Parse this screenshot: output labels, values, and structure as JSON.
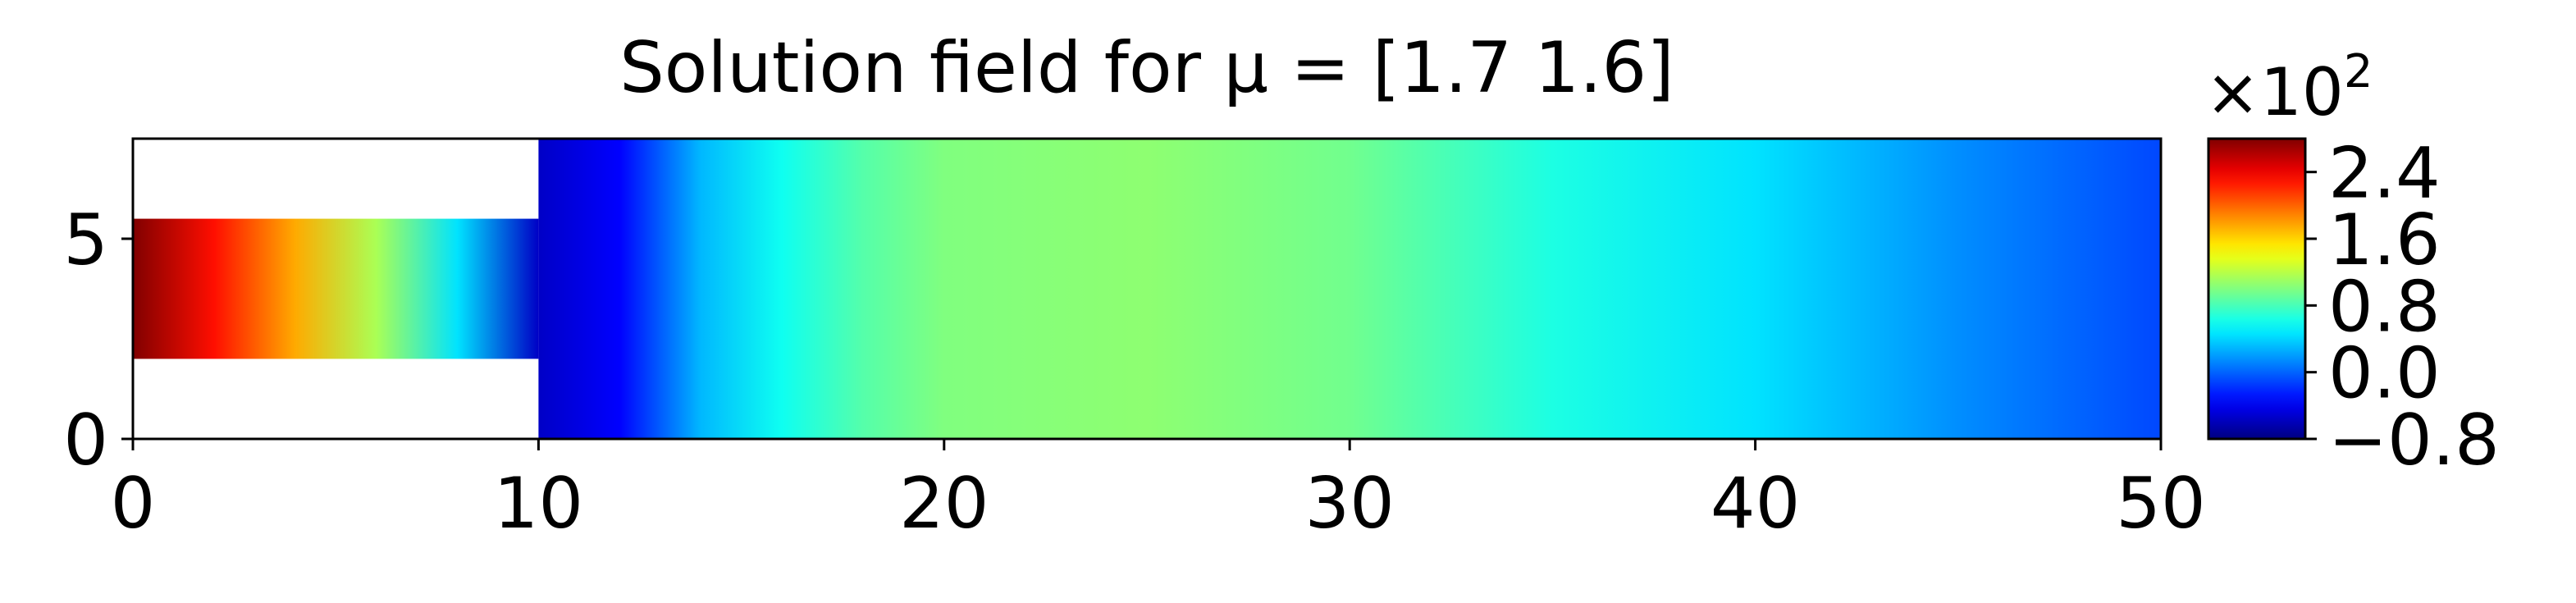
{
  "chart_data": {
    "type": "heatmap",
    "title": "Solution field for μ = [1.7 1.6]",
    "xlabel": "",
    "ylabel": "",
    "xlim": [
      0,
      50
    ],
    "ylim": [
      0,
      7.5
    ],
    "x_ticks": [
      "0",
      "10",
      "20",
      "30",
      "40",
      "50"
    ],
    "y_ticks": [
      "0",
      "5"
    ],
    "domain": {
      "inlet_channel": {
        "x": [
          0,
          10
        ],
        "y": [
          2.0,
          5.5
        ]
      },
      "main_channel": {
        "x": [
          10,
          50
        ],
        "y": [
          0,
          7.5
        ]
      }
    },
    "colormap": "jet",
    "colorbar": {
      "range": [
        -0.8,
        2.8
      ],
      "tick_labels": [
        "−0.8",
        "0.0",
        "0.8",
        "1.6",
        "2.4"
      ],
      "tick_values": [
        -0.8,
        0.0,
        0.8,
        1.6,
        2.4
      ],
      "multiplier_label": "×10",
      "multiplier_exponent": "2"
    },
    "field_profile": {
      "x": [
        0,
        2,
        4,
        6,
        8,
        10,
        12,
        14,
        16,
        18,
        20,
        25,
        30,
        35,
        40,
        45,
        50
      ],
      "values": [
        2.8,
        2.3,
        1.75,
        1.15,
        0.45,
        -0.55,
        -0.35,
        0.3,
        0.6,
        0.85,
        1.0,
        1.05,
        0.95,
        0.65,
        0.45,
        0.15,
        -0.1
      ]
    }
  }
}
